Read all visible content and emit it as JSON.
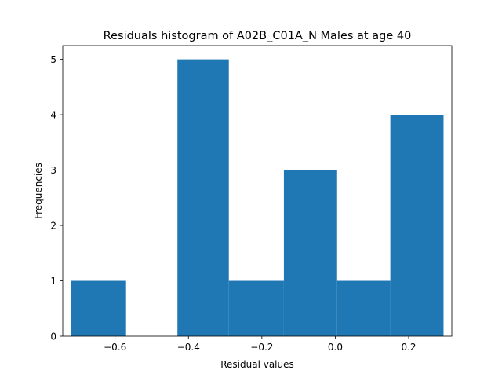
{
  "chart_data": {
    "type": "bar",
    "title": "Residuals histogram of A02B_C01A_N Males at age 40",
    "xlabel": "Residual values",
    "ylabel": "Frequencies",
    "bar_color": "#1f77b4",
    "bins": [
      {
        "x0": -0.72,
        "x1": -0.57,
        "count": 1
      },
      {
        "x0": -0.57,
        "x1": -0.43,
        "count": 0
      },
      {
        "x0": -0.43,
        "x1": -0.29,
        "count": 5
      },
      {
        "x0": -0.29,
        "x1": -0.14,
        "count": 1
      },
      {
        "x0": -0.14,
        "x1": 0.005,
        "count": 3
      },
      {
        "x0": 0.005,
        "x1": 0.15,
        "count": 1
      },
      {
        "x0": 0.15,
        "x1": 0.295,
        "count": 4
      }
    ],
    "xlim": [
      -0.7425,
      0.3175
    ],
    "ylim": [
      0,
      5.25
    ],
    "xticks": [
      {
        "value": -0.6,
        "label": "−0.6"
      },
      {
        "value": -0.4,
        "label": "−0.4"
      },
      {
        "value": -0.2,
        "label": "−0.2"
      },
      {
        "value": 0.0,
        "label": "0.0"
      },
      {
        "value": 0.2,
        "label": "0.2"
      }
    ],
    "yticks": [
      {
        "value": 0,
        "label": "0"
      },
      {
        "value": 1,
        "label": "1"
      },
      {
        "value": 2,
        "label": "2"
      },
      {
        "value": 3,
        "label": "3"
      },
      {
        "value": 4,
        "label": "4"
      },
      {
        "value": 5,
        "label": "5"
      }
    ],
    "grid": false,
    "legend": "none"
  }
}
